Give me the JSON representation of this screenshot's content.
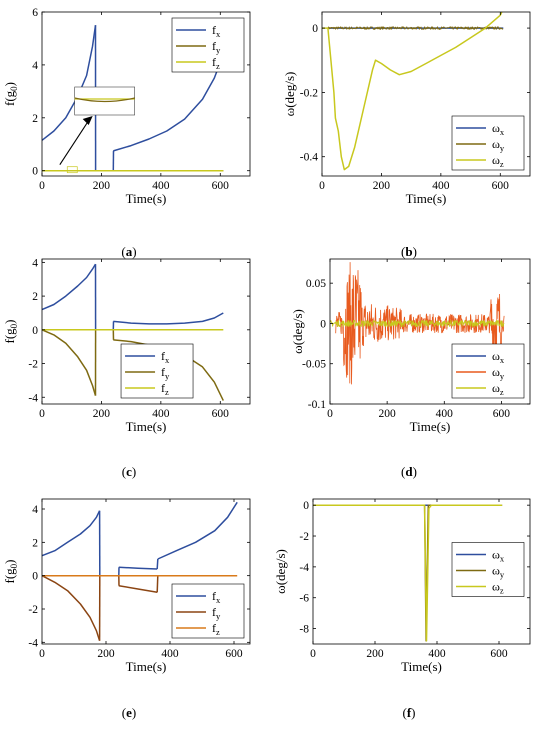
{
  "colors": {
    "blue": "#2E4E9E",
    "olive": "#7E6A12",
    "yellow": "#C8C81E",
    "orange": "#E85A1E",
    "brown": "#8B4513",
    "orange_fz": "#D97A1A",
    "axis": "#000000",
    "grid_box": "#000000"
  },
  "captions": [
    "a",
    "b",
    "c",
    "d",
    "e",
    "f"
  ],
  "chart_data": [
    {
      "id": "a",
      "type": "line",
      "xlabel": "Time(s)",
      "ylabel": "f(g0)",
      "xlim": [
        0,
        700
      ],
      "ylim": [
        -0.2,
        6
      ],
      "xticks": [
        0,
        200,
        400,
        600
      ],
      "yticks": [
        0,
        2,
        4,
        6
      ],
      "legend": "top-right",
      "inset": true,
      "series": [
        {
          "name": "f_x",
          "color": "blue",
          "segments": [
            {
              "x": [
                0,
                40,
                80,
                120,
                150,
                170,
                180
              ],
              "y": [
                1.15,
                1.5,
                2.0,
                2.8,
                3.6,
                4.7,
                5.5
              ]
            },
            {
              "x": [
                180,
                180.5
              ],
              "y": [
                5.5,
                0
              ]
            },
            {
              "x": [
                240,
                240.5
              ],
              "y": [
                0,
                0.75
              ]
            },
            {
              "x": [
                240,
                300,
                360,
                420,
                480,
                540,
                580,
                610
              ],
              "y": [
                0.75,
                0.95,
                1.2,
                1.5,
                1.95,
                2.7,
                3.5,
                4.4
              ]
            }
          ]
        },
        {
          "name": "f_y",
          "color": "olive",
          "segments": [
            {
              "x": [
                0,
                610
              ],
              "y": [
                0,
                0
              ]
            }
          ]
        },
        {
          "name": "f_z",
          "color": "yellow",
          "segments": [
            {
              "x": [
                0,
                610
              ],
              "y": [
                0,
                0
              ]
            }
          ]
        }
      ]
    },
    {
      "id": "b",
      "type": "line",
      "xlabel": "Time(s)",
      "ylabel": "ω(deg/s)",
      "xlim": [
        0,
        700
      ],
      "ylim": [
        -0.46,
        0.05
      ],
      "xticks": [
        0,
        200,
        400,
        600
      ],
      "yticks": [
        0,
        -0.2,
        -0.4
      ],
      "legend": "bottom-right",
      "series": [
        {
          "name": "ω_x",
          "color": "blue",
          "segments": [
            {
              "x": [
                20,
                610
              ],
              "y": [
                0,
                0
              ]
            }
          ]
        },
        {
          "name": "ω_y",
          "color": "olive",
          "noise": 0.004,
          "segments": [
            {
              "x": [
                20,
                610
              ],
              "y": [
                0,
                0
              ]
            }
          ]
        },
        {
          "name": "ω_z",
          "color": "yellow",
          "segments": [
            {
              "x": [
                0,
                20,
                30,
                40,
                45,
                55,
                65,
                75,
                90,
                110,
                140,
                170,
                180,
                200,
                230,
                260,
                300,
                350,
                400,
                450,
                500,
                550,
                600,
                610
              ],
              "y": [
                0,
                0,
                -0.1,
                -0.2,
                -0.28,
                -0.32,
                -0.4,
                -0.44,
                -0.43,
                -0.37,
                -0.25,
                -0.13,
                -0.1,
                -0.11,
                -0.13,
                -0.145,
                -0.135,
                -0.11,
                -0.085,
                -0.06,
                -0.03,
                0.0,
                0.04,
                0.06
              ]
            }
          ]
        }
      ]
    },
    {
      "id": "c",
      "type": "line",
      "xlabel": "Time(s)",
      "ylabel": "f(g0)",
      "xlim": [
        0,
        700
      ],
      "ylim": [
        -4.4,
        4.2
      ],
      "xticks": [
        0,
        200,
        400,
        600
      ],
      "yticks": [
        4,
        2,
        0,
        -2,
        -4
      ],
      "legend": "bottom-center",
      "series": [
        {
          "name": "f_x",
          "color": "blue",
          "segments": [
            {
              "x": [
                0,
                40,
                80,
                120,
                150,
                170,
                180
              ],
              "y": [
                1.2,
                1.5,
                2.0,
                2.6,
                3.1,
                3.6,
                3.9
              ]
            },
            {
              "x": [
                180,
                180.5
              ],
              "y": [
                3.9,
                0
              ]
            },
            {
              "x": [
                240,
                240.5
              ],
              "y": [
                0,
                0.5
              ]
            },
            {
              "x": [
                240,
                300,
                360,
                420,
                480,
                540,
                580,
                610
              ],
              "y": [
                0.5,
                0.4,
                0.35,
                0.35,
                0.4,
                0.5,
                0.7,
                1.0
              ]
            }
          ]
        },
        {
          "name": "f_y",
          "color": "olive",
          "segments": [
            {
              "x": [
                0,
                40,
                80,
                120,
                150,
                170,
                180
              ],
              "y": [
                0,
                -0.3,
                -0.8,
                -1.6,
                -2.4,
                -3.3,
                -3.9
              ]
            },
            {
              "x": [
                180,
                180.5
              ],
              "y": [
                -3.9,
                0
              ]
            },
            {
              "x": [
                240,
                240.5
              ],
              "y": [
                0,
                -0.6
              ]
            },
            {
              "x": [
                240,
                300,
                360,
                420,
                480,
                540,
                580,
                610
              ],
              "y": [
                -0.6,
                -0.7,
                -0.9,
                -1.1,
                -1.5,
                -2.2,
                -3.1,
                -4.2
              ]
            }
          ]
        },
        {
          "name": "f_z",
          "color": "yellow",
          "segments": [
            {
              "x": [
                0,
                610
              ],
              "y": [
                0,
                0
              ]
            }
          ]
        }
      ]
    },
    {
      "id": "d",
      "type": "line",
      "xlabel": "Time(s)",
      "ylabel": "ω(deg/s)",
      "xlim": [
        0,
        700
      ],
      "ylim": [
        -0.1,
        0.08
      ],
      "xticks": [
        0,
        200,
        400,
        600
      ],
      "yticks": [
        0.05,
        0,
        -0.05,
        -0.1
      ],
      "legend": "bottom-right",
      "series": [
        {
          "name": "ω_x",
          "color": "blue",
          "segments": []
        },
        {
          "name": "ω_y",
          "color": "orange",
          "noise_profile": true
        },
        {
          "name": "ω_z",
          "color": "yellow",
          "noise": 0.004,
          "segments": [
            {
              "x": [
                0,
                610
              ],
              "y": [
                0,
                0
              ]
            }
          ]
        }
      ]
    },
    {
      "id": "e",
      "type": "line",
      "xlabel": "Time(s)",
      "ylabel": "f(g0)",
      "xlim": [
        0,
        650
      ],
      "ylim": [
        -4.1,
        4.6
      ],
      "xticks": [
        0,
        200,
        400,
        600
      ],
      "yticks": [
        4,
        2,
        0,
        -2,
        -4
      ],
      "legend": "bottom-right",
      "series": [
        {
          "name": "f_x",
          "color": "blue",
          "segments": [
            {
              "x": [
                0,
                40,
                80,
                120,
                150,
                170,
                180
              ],
              "y": [
                1.2,
                1.5,
                2.0,
                2.5,
                3.0,
                3.5,
                3.9
              ]
            },
            {
              "x": [
                180,
                180.5
              ],
              "y": [
                3.9,
                0
              ]
            },
            {
              "x": [
                240,
                240.5
              ],
              "y": [
                0,
                0.5
              ]
            },
            {
              "x": [
                240,
                300,
                360
              ],
              "y": [
                0.5,
                0.45,
                0.4
              ]
            },
            {
              "x": [
                360,
                362
              ],
              "y": [
                0.4,
                1.0
              ]
            },
            {
              "x": [
                362,
                420,
                480,
                540,
                580,
                610
              ],
              "y": [
                1.0,
                1.5,
                2.0,
                2.7,
                3.5,
                4.4
              ]
            }
          ]
        },
        {
          "name": "f_y",
          "color": "brown",
          "segments": [
            {
              "x": [
                0,
                40,
                80,
                120,
                150,
                170,
                180
              ],
              "y": [
                0,
                -0.4,
                -0.9,
                -1.7,
                -2.5,
                -3.3,
                -3.9
              ]
            },
            {
              "x": [
                180,
                180.5
              ],
              "y": [
                -3.9,
                0
              ]
            },
            {
              "x": [
                240,
                240.5
              ],
              "y": [
                0,
                -0.6
              ]
            },
            {
              "x": [
                240,
                300,
                360
              ],
              "y": [
                -0.6,
                -0.8,
                -1.0
              ]
            },
            {
              "x": [
                360,
                362
              ],
              "y": [
                -1.0,
                0
              ]
            }
          ]
        },
        {
          "name": "f_z",
          "color": "orange_fz",
          "segments": [
            {
              "x": [
                0,
                610
              ],
              "y": [
                0,
                0
              ]
            }
          ]
        }
      ]
    },
    {
      "id": "f",
      "type": "line",
      "xlabel": "Time(s)",
      "ylabel": "ω(deg/s)",
      "xlim": [
        0,
        700
      ],
      "ylim": [
        -9,
        0.4
      ],
      "xticks": [
        0,
        200,
        400,
        600
      ],
      "yticks": [
        0,
        -2,
        -4,
        -6,
        -8
      ],
      "legend": "center-right",
      "series": [
        {
          "name": "ω_x",
          "color": "blue",
          "segments": [
            {
              "x": [
                0,
                610
              ],
              "y": [
                0,
                0
              ]
            }
          ]
        },
        {
          "name": "ω_y",
          "color": "olive",
          "segments": [
            {
              "x": [
                0,
                360,
                365,
                372,
                380,
                610
              ],
              "y": [
                0,
                0,
                -8.8,
                0,
                0,
                0
              ]
            }
          ]
        },
        {
          "name": "ω_z",
          "color": "yellow",
          "segments": [
            {
              "x": [
                0,
                360,
                366,
                374,
                382,
                610
              ],
              "y": [
                0,
                0,
                -8.8,
                -0.2,
                0,
                0
              ]
            }
          ]
        }
      ]
    }
  ]
}
